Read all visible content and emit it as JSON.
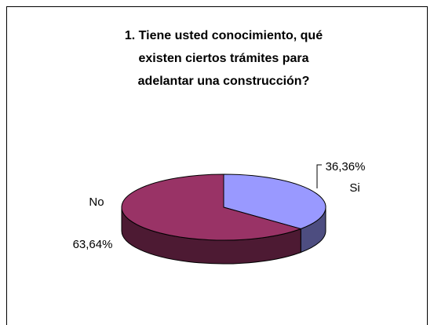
{
  "chart_data": {
    "type": "pie",
    "title": [
      "1.  Tiene usted conocimiento, qué",
      "existen ciertos trámites para",
      "adelantar una construcción?"
    ],
    "categories": [
      "Si",
      "No"
    ],
    "values": [
      36.36,
      63.64
    ],
    "value_labels": [
      "36,36%",
      "63,64%"
    ],
    "colors": [
      "#9999ff",
      "#993366"
    ],
    "side_colors": [
      "#4d4d80",
      "#4d1a33"
    ]
  }
}
